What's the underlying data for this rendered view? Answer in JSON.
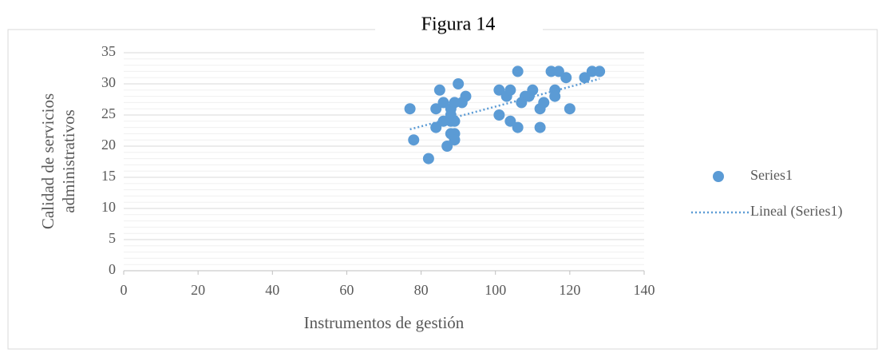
{
  "chart_data": {
    "type": "scatter",
    "title": "Figura 14",
    "xlabel": "Instrumentos de gestión",
    "ylabel": [
      "Calidad de servicios",
      "administrativos"
    ],
    "xlim": [
      0,
      140
    ],
    "xticks": [
      0,
      20,
      40,
      60,
      80,
      100,
      120,
      140
    ],
    "ylim": [
      0,
      35
    ],
    "yticks": [
      0,
      5,
      10,
      15,
      20,
      25,
      30,
      35
    ],
    "yminor": 1,
    "grid": true,
    "legend": "right",
    "series": [
      {
        "name": "Series1",
        "color": "#5b9bd5",
        "x": [
          77,
          78,
          82,
          84,
          84,
          85,
          86,
          86,
          87,
          88,
          88,
          88,
          88,
          89,
          89,
          89,
          89,
          90,
          91,
          92,
          101,
          101,
          103,
          104,
          104,
          106,
          106,
          107,
          108,
          109,
          110,
          112,
          112,
          113,
          115,
          116,
          116,
          117,
          119,
          120,
          124,
          126,
          128
        ],
        "values": [
          26,
          21,
          18,
          23,
          26,
          29,
          27,
          24,
          20,
          26,
          25,
          24,
          22,
          27,
          24,
          22,
          21,
          30,
          27,
          28,
          29,
          25,
          28,
          29,
          24,
          32,
          23,
          27,
          28,
          28,
          29,
          23,
          26,
          27,
          32,
          29,
          28,
          32,
          31,
          26,
          31,
          32,
          32
        ]
      },
      {
        "name": "Lineal (Series1)",
        "color": "#5b9bd5",
        "style": "dotted",
        "x": [
          77,
          128
        ],
        "values": [
          22.7,
          30.8
        ]
      }
    ]
  }
}
